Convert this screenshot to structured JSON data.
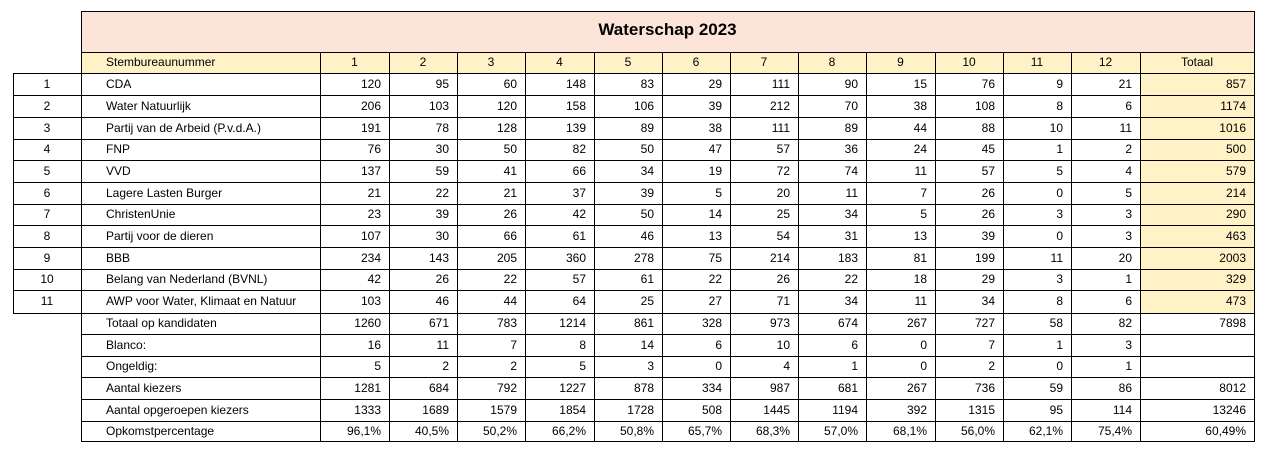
{
  "title": "Waterschap 2023",
  "header": {
    "label": "Stembureaunummer",
    "columns": [
      "1",
      "2",
      "3",
      "4",
      "5",
      "6",
      "7",
      "8",
      "9",
      "10",
      "11",
      "12"
    ],
    "total": "Totaal"
  },
  "parties": [
    {
      "num": "1",
      "name": "CDA",
      "values": [
        "120",
        "95",
        "60",
        "148",
        "83",
        "29",
        "111",
        "90",
        "15",
        "76",
        "9",
        "21"
      ],
      "total": "857"
    },
    {
      "num": "2",
      "name": "Water Natuurlijk",
      "values": [
        "206",
        "103",
        "120",
        "158",
        "106",
        "39",
        "212",
        "70",
        "38",
        "108",
        "8",
        "6"
      ],
      "total": "1174"
    },
    {
      "num": "3",
      "name": "Partij van de Arbeid (P.v.d.A.)",
      "values": [
        "191",
        "78",
        "128",
        "139",
        "89",
        "38",
        "111",
        "89",
        "44",
        "88",
        "10",
        "11"
      ],
      "total": "1016"
    },
    {
      "num": "4",
      "name": "FNP",
      "values": [
        "76",
        "30",
        "50",
        "82",
        "50",
        "47",
        "57",
        "36",
        "24",
        "45",
        "1",
        "2"
      ],
      "total": "500"
    },
    {
      "num": "5",
      "name": "VVD",
      "values": [
        "137",
        "59",
        "41",
        "66",
        "34",
        "19",
        "72",
        "74",
        "11",
        "57",
        "5",
        "4"
      ],
      "total": "579"
    },
    {
      "num": "6",
      "name": "Lagere Lasten Burger",
      "values": [
        "21",
        "22",
        "21",
        "37",
        "39",
        "5",
        "20",
        "11",
        "7",
        "26",
        "0",
        "5"
      ],
      "total": "214"
    },
    {
      "num": "7",
      "name": "ChristenUnie",
      "values": [
        "23",
        "39",
        "26",
        "42",
        "50",
        "14",
        "25",
        "34",
        "5",
        "26",
        "3",
        "3"
      ],
      "total": "290"
    },
    {
      "num": "8",
      "name": "Partij voor de dieren",
      "values": [
        "107",
        "30",
        "66",
        "61",
        "46",
        "13",
        "54",
        "31",
        "13",
        "39",
        "0",
        "3"
      ],
      "total": "463"
    },
    {
      "num": "9",
      "name": "BBB",
      "values": [
        "234",
        "143",
        "205",
        "360",
        "278",
        "75",
        "214",
        "183",
        "81",
        "199",
        "11",
        "20"
      ],
      "total": "2003"
    },
    {
      "num": "10",
      "name": "Belang van Nederland (BVNL)",
      "values": [
        "42",
        "26",
        "22",
        "57",
        "61",
        "22",
        "26",
        "22",
        "18",
        "29",
        "3",
        "1"
      ],
      "total": "329"
    },
    {
      "num": "11",
      "name": "AWP voor Water, Klimaat en Natuur",
      "values": [
        "103",
        "46",
        "44",
        "64",
        "25",
        "27",
        "71",
        "34",
        "11",
        "34",
        "8",
        "6"
      ],
      "total": "473"
    }
  ],
  "summary": [
    {
      "name": "Totaal op kandidaten",
      "values": [
        "1260",
        "671",
        "783",
        "1214",
        "861",
        "328",
        "973",
        "674",
        "267",
        "727",
        "58",
        "82"
      ],
      "total": "7898"
    },
    {
      "name": "Blanco:",
      "values": [
        "16",
        "11",
        "7",
        "8",
        "14",
        "6",
        "10",
        "6",
        "0",
        "7",
        "1",
        "3"
      ],
      "total": ""
    },
    {
      "name": "Ongeldig:",
      "values": [
        "5",
        "2",
        "2",
        "5",
        "3",
        "0",
        "4",
        "1",
        "0",
        "2",
        "0",
        "1"
      ],
      "total": ""
    },
    {
      "name": "Aantal kiezers",
      "values": [
        "1281",
        "684",
        "792",
        "1227",
        "878",
        "334",
        "987",
        "681",
        "267",
        "736",
        "59",
        "86"
      ],
      "total": "8012"
    },
    {
      "name": "Aantal opgeroepen kiezers",
      "values": [
        "1333",
        "1689",
        "1579",
        "1854",
        "1728",
        "508",
        "1445",
        "1194",
        "392",
        "1315",
        "95",
        "114"
      ],
      "total": "13246"
    },
    {
      "name": "Opkomstpercentage",
      "values": [
        "96,1%",
        "40,5%",
        "50,2%",
        "66,2%",
        "50,8%",
        "65,7%",
        "68,3%",
        "57,0%",
        "68,1%",
        "56,0%",
        "62,1%",
        "75,4%"
      ],
      "total": "60,49%"
    }
  ]
}
